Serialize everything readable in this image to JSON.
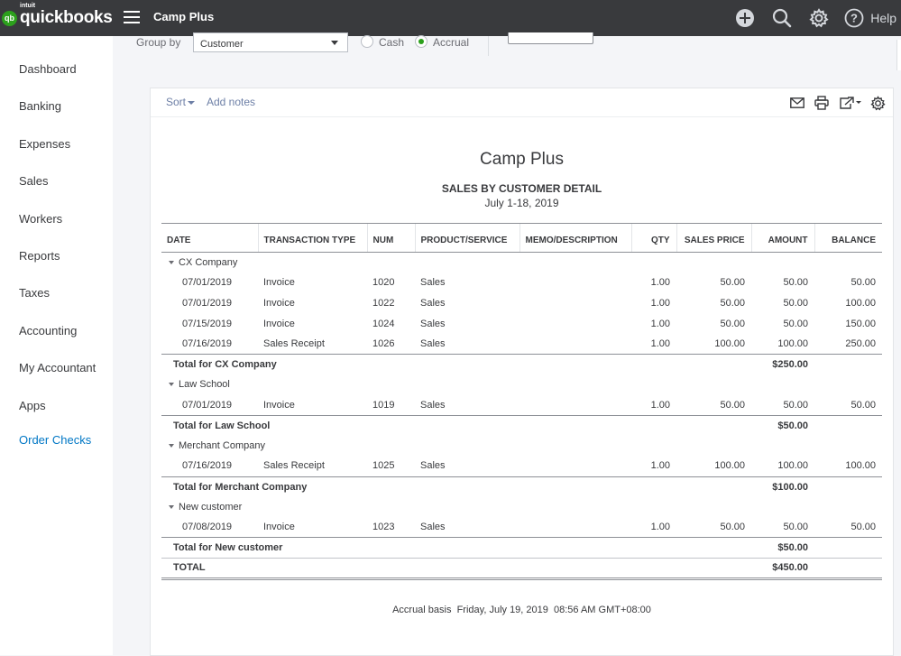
{
  "topbar": {
    "logo_small": "intuit",
    "logo_name": "quickbooks",
    "logo_badge": "qb",
    "company_name": "Camp Plus",
    "icons": [
      "plus-circle-icon",
      "search-icon",
      "gear-icon",
      "help-circle-icon"
    ],
    "help_label": "Help"
  },
  "sidebar": {
    "items": [
      {
        "label": "Dashboard"
      },
      {
        "label": "Banking"
      },
      {
        "label": "Expenses"
      },
      {
        "label": "Sales"
      },
      {
        "label": "Workers"
      },
      {
        "label": "Reports"
      },
      {
        "label": "Taxes"
      },
      {
        "label": "Accounting"
      },
      {
        "label": "My Accountant"
      },
      {
        "label": "Apps"
      },
      {
        "label": "Order Checks"
      }
    ]
  },
  "filters": {
    "group_by_label": "Group by",
    "group_by_value": "Customer",
    "cash_label": "Cash",
    "accrual_label": "Accrual",
    "selected_basis": "Accrual"
  },
  "toolbar": {
    "sort_label": "Sort",
    "add_notes_label": "Add notes",
    "icons": [
      "email-icon",
      "print-icon",
      "export-icon",
      "gear-icon"
    ]
  },
  "report": {
    "company": "Camp Plus",
    "title": "SALES BY CUSTOMER DETAIL",
    "date_range": "July 1-18, 2019",
    "columns": [
      "DATE",
      "TRANSACTION TYPE",
      "NUM",
      "PRODUCT/SERVICE",
      "MEMO/DESCRIPTION",
      "QTY",
      "SALES PRICE",
      "AMOUNT",
      "BALANCE"
    ],
    "groups": [
      {
        "name": "CX Company",
        "rows": [
          {
            "date": "07/01/2019",
            "type": "Invoice",
            "num": "1020",
            "product": "Sales",
            "memo": "",
            "qty": "1.00",
            "price": "50.00",
            "amount": "50.00",
            "balance": "50.00"
          },
          {
            "date": "07/01/2019",
            "type": "Invoice",
            "num": "1022",
            "product": "Sales",
            "memo": "",
            "qty": "1.00",
            "price": "50.00",
            "amount": "50.00",
            "balance": "100.00"
          },
          {
            "date": "07/15/2019",
            "type": "Invoice",
            "num": "1024",
            "product": "Sales",
            "memo": "",
            "qty": "1.00",
            "price": "50.00",
            "amount": "50.00",
            "balance": "150.00"
          },
          {
            "date": "07/16/2019",
            "type": "Sales Receipt",
            "num": "1026",
            "product": "Sales",
            "memo": "",
            "qty": "1.00",
            "price": "100.00",
            "amount": "100.00",
            "balance": "250.00"
          }
        ],
        "total_label": "Total for CX Company",
        "total_amount": "$250.00"
      },
      {
        "name": "Law School",
        "rows": [
          {
            "date": "07/01/2019",
            "type": "Invoice",
            "num": "1019",
            "product": "Sales",
            "memo": "",
            "qty": "1.00",
            "price": "50.00",
            "amount": "50.00",
            "balance": "50.00"
          }
        ],
        "total_label": "Total for Law School",
        "total_amount": "$50.00"
      },
      {
        "name": "Merchant Company",
        "rows": [
          {
            "date": "07/16/2019",
            "type": "Sales Receipt",
            "num": "1025",
            "product": "Sales",
            "memo": "",
            "qty": "1.00",
            "price": "100.00",
            "amount": "100.00",
            "balance": "100.00"
          }
        ],
        "total_label": "Total for Merchant Company",
        "total_amount": "$100.00"
      },
      {
        "name": "New customer",
        "rows": [
          {
            "date": "07/08/2019",
            "type": "Invoice",
            "num": "1023",
            "product": "Sales",
            "memo": "",
            "qty": "1.00",
            "price": "50.00",
            "amount": "50.00",
            "balance": "50.00"
          }
        ],
        "total_label": "Total for New customer",
        "total_amount": "$50.00"
      }
    ],
    "grand_total_label": "TOTAL",
    "grand_total_amount": "$450.00",
    "footer": "Accrual basis  Friday, July 19, 2019  08:56 AM GMT+08:00"
  },
  "colors": {
    "topbar": "#393a3d",
    "brand_green": "#2ca01c",
    "link_blue": "#0077c5",
    "toolbar_link": "#6d7fa6"
  }
}
